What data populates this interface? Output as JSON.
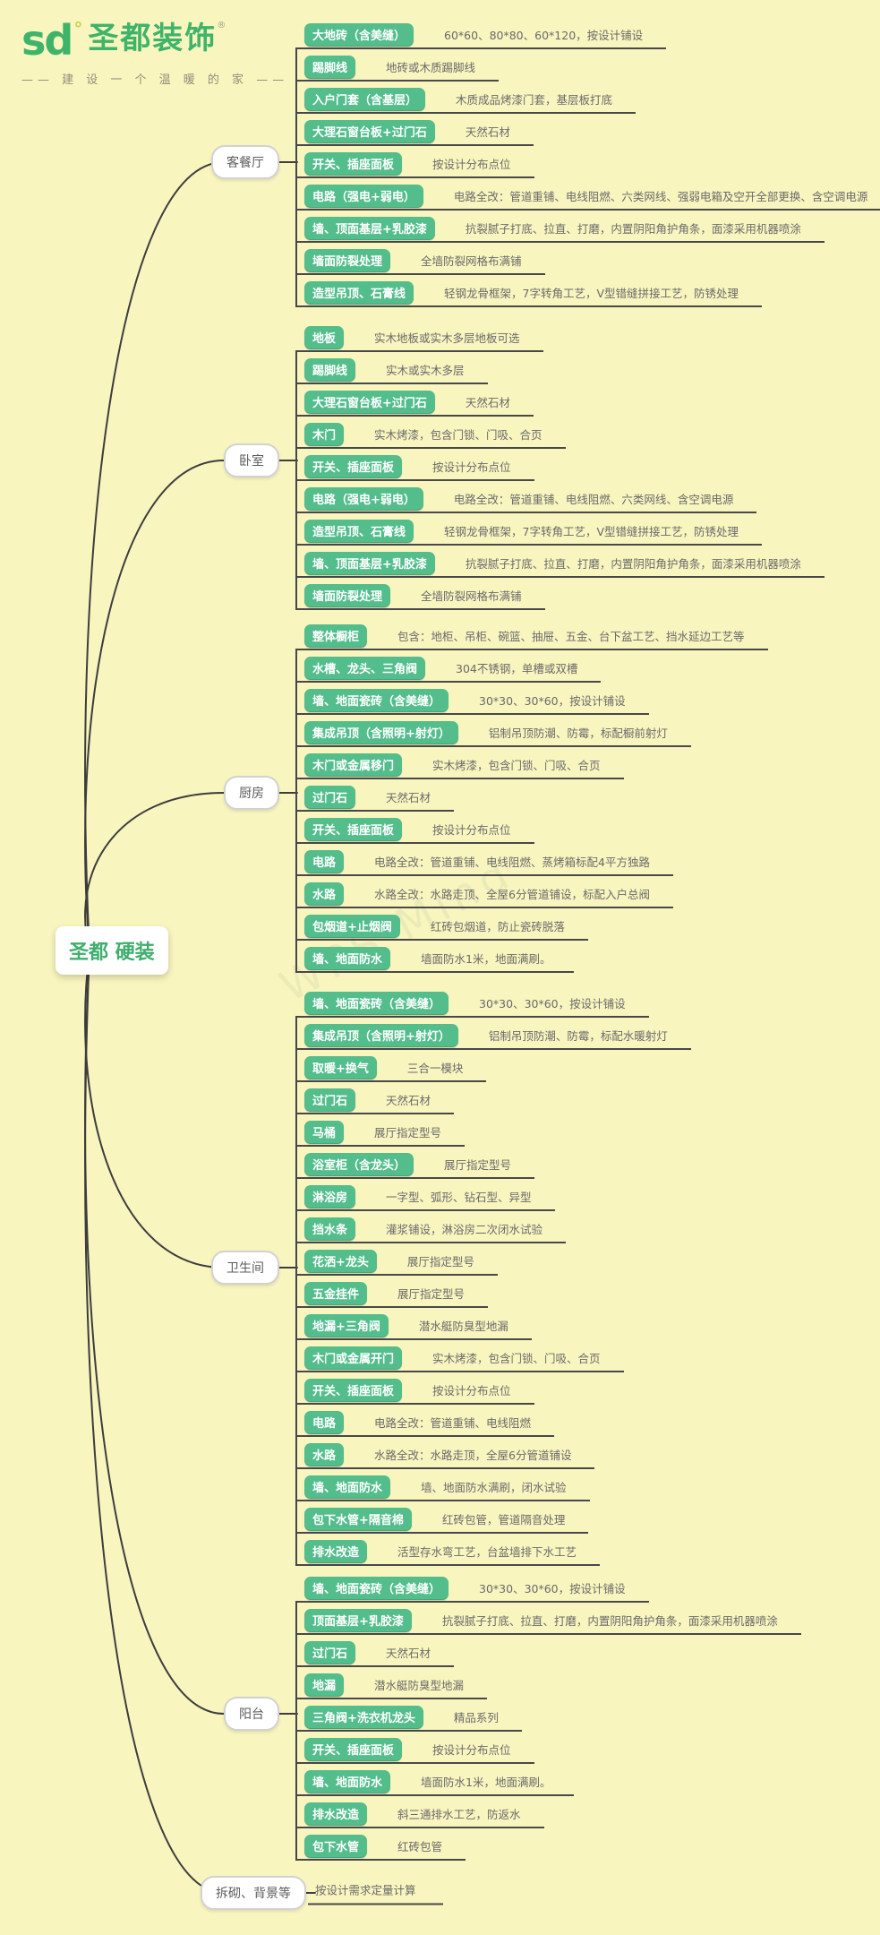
{
  "colors": {
    "background": "#f9f5bf",
    "pill_green": "#53bd8c",
    "logo_green": "#3eb46a",
    "line_dark": "#484848",
    "desc_gray": "#6a6a6a"
  },
  "logo": {
    "mark": "sd",
    "degree_dot": "°",
    "brand": "圣都装饰",
    "registered_mark": "®",
    "tagline": "—— 建 设 一 个 温 暖 的 家 ——"
  },
  "root": {
    "label": "圣都 硬装"
  },
  "watermark": {
    "text": "WPS Mind"
  },
  "branches": [
    {
      "label": "客餐厅",
      "items": [
        {
          "label": "大地砖（含美缝）",
          "desc": "60*60、80*80、60*120，按设计铺设"
        },
        {
          "label": "踢脚线",
          "desc": "地砖或木质踢脚线"
        },
        {
          "label": "入户门套（含基层）",
          "desc": "木质成品烤漆门套，基层板打底"
        },
        {
          "label": "大理石窗台板+过门石",
          "desc": "天然石材"
        },
        {
          "label": "开关、插座面板",
          "desc": "按设计分布点位"
        },
        {
          "label": "电路（强电+弱电）",
          "desc": "电路全改：管道重铺、电线阻燃、六类网线、强弱电箱及空开全部更换、含空调电源"
        },
        {
          "label": "墙、顶面基层+乳胶漆",
          "desc": "抗裂腻子打底、拉直、打磨，内置阴阳角护角条，面漆采用机器喷涂"
        },
        {
          "label": "墙面防裂处理",
          "desc": "全墙防裂网格布满铺"
        },
        {
          "label": "造型吊顶、石膏线",
          "desc": "轻钢龙骨框架，7字转角工艺，V型错缝拼接工艺，防锈处理"
        }
      ]
    },
    {
      "label": "卧室",
      "items": [
        {
          "label": "地板",
          "desc": "实木地板或实木多层地板可选"
        },
        {
          "label": "踢脚线",
          "desc": "实木或实木多层"
        },
        {
          "label": "大理石窗台板+过门石",
          "desc": "天然石材"
        },
        {
          "label": "木门",
          "desc": "实木烤漆，包含门锁、门吸、合页"
        },
        {
          "label": "开关、插座面板",
          "desc": "按设计分布点位"
        },
        {
          "label": "电路（强电+弱电）",
          "desc": "电路全改：管道重铺、电线阻燃、六类网线、含空调电源"
        },
        {
          "label": "造型吊顶、石膏线",
          "desc": "轻钢龙骨框架，7字转角工艺，V型错缝拼接工艺，防锈处理"
        },
        {
          "label": "墙、顶面基层+乳胶漆",
          "desc": "抗裂腻子打底、拉直、打磨，内置阴阳角护角条，面漆采用机器喷涂"
        },
        {
          "label": "墙面防裂处理",
          "desc": "全墙防裂网格布满铺"
        }
      ]
    },
    {
      "label": "厨房",
      "items": [
        {
          "label": "整体橱柜",
          "desc": "包含：地柜、吊柜、碗篮、抽屉、五金、台下盆工艺、挡水延边工艺等"
        },
        {
          "label": "水槽、龙头、三角阀",
          "desc": "304不锈钢，单槽或双槽"
        },
        {
          "label": "墙、地面瓷砖（含美缝）",
          "desc": "30*30、30*60，按设计铺设"
        },
        {
          "label": "集成吊顶（含照明+射灯）",
          "desc": "铝制吊顶防潮、防霉，标配橱前射灯"
        },
        {
          "label": "木门或金属移门",
          "desc": "实木烤漆，包含门锁、门吸、合页"
        },
        {
          "label": "过门石",
          "desc": "天然石材"
        },
        {
          "label": "开关、插座面板",
          "desc": "按设计分布点位"
        },
        {
          "label": "电路",
          "desc": "电路全改：管道重铺、电线阻燃、蒸烤箱标配4平方独路"
        },
        {
          "label": "水路",
          "desc": "水路全改：水路走顶、全屋6分管道铺设，标配入户总阀"
        },
        {
          "label": "包烟道+止烟阀",
          "desc": "红砖包烟道，防止瓷砖脱落"
        },
        {
          "label": "墙、地面防水",
          "desc": "墙面防水1米，地面满刷。"
        }
      ]
    },
    {
      "label": "卫生间",
      "items": [
        {
          "label": "墙、地面瓷砖（含美缝）",
          "desc": "30*30、30*60，按设计铺设"
        },
        {
          "label": "集成吊顶（含照明+射灯）",
          "desc": "铝制吊顶防潮、防霉，标配水暖射灯"
        },
        {
          "label": "取暖+换气",
          "desc": "三合一模块"
        },
        {
          "label": "过门石",
          "desc": "天然石材"
        },
        {
          "label": "马桶",
          "desc": "展厅指定型号"
        },
        {
          "label": "浴室柜（含龙头）",
          "desc": "展厅指定型号"
        },
        {
          "label": "淋浴房",
          "desc": "一字型、弧形、钻石型、异型"
        },
        {
          "label": "挡水条",
          "desc": "灌浆铺设，淋浴房二次闭水试验"
        },
        {
          "label": "花洒+龙头",
          "desc": "展厅指定型号"
        },
        {
          "label": "五金挂件",
          "desc": "展厅指定型号"
        },
        {
          "label": "地漏+三角阀",
          "desc": "潜水艇防臭型地漏"
        },
        {
          "label": "木门或金属开门",
          "desc": "实木烤漆，包含门锁、门吸、合页"
        },
        {
          "label": "开关、插座面板",
          "desc": "按设计分布点位"
        },
        {
          "label": "电路",
          "desc": "电路全改：管道重铺、电线阻燃"
        },
        {
          "label": "水路",
          "desc": "水路全改：水路走顶，全屋6分管道铺设"
        },
        {
          "label": "墙、地面防水",
          "desc": "墙、地面防水满刷，闭水试验"
        },
        {
          "label": "包下水管+隔音棉",
          "desc": "红砖包管，管道隔音处理"
        },
        {
          "label": "排水改造",
          "desc": "活型存水弯工艺，台盆墙排下水工艺"
        }
      ]
    },
    {
      "label": "阳台",
      "items": [
        {
          "label": "墙、地面瓷砖（含美缝）",
          "desc": "30*30、30*60，按设计铺设"
        },
        {
          "label": "顶面基层+乳胶漆",
          "desc": "抗裂腻子打底、拉直、打磨，内置阴阳角护角条，面漆采用机器喷涂"
        },
        {
          "label": "过门石",
          "desc": "天然石材"
        },
        {
          "label": "地漏",
          "desc": "潜水艇防臭型地漏"
        },
        {
          "label": "三角阀+洗衣机龙头",
          "desc": "精品系列"
        },
        {
          "label": "开关、插座面板",
          "desc": "按设计分布点位"
        },
        {
          "label": "墙、地面防水",
          "desc": "墙面防水1米，地面满刷。"
        },
        {
          "label": "排水改造",
          "desc": "斜三通排水工艺，防返水"
        },
        {
          "label": "包下水管",
          "desc": "红砖包管"
        }
      ]
    },
    {
      "label": "拆砌、背景等",
      "items": [
        {
          "label": "",
          "desc": "按设计需求定量计算"
        }
      ]
    }
  ]
}
